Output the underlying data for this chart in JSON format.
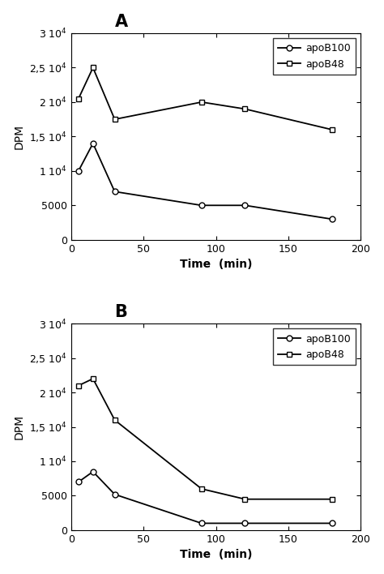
{
  "panel_A": {
    "title": "A",
    "apoB100": {
      "x": [
        5,
        15,
        30,
        90,
        120,
        180
      ],
      "y": [
        10000,
        14000,
        7000,
        5000,
        5000,
        3000
      ]
    },
    "apoB48": {
      "x": [
        5,
        15,
        30,
        90,
        120,
        180
      ],
      "y": [
        20500,
        25000,
        17500,
        20000,
        19000,
        16000
      ]
    }
  },
  "panel_B": {
    "title": "B",
    "apoB100": {
      "x": [
        5,
        15,
        30,
        90,
        120,
        180
      ],
      "y": [
        7000,
        8500,
        5200,
        1000,
        1000,
        1000
      ]
    },
    "apoB48": {
      "x": [
        5,
        15,
        30,
        90,
        120,
        180
      ],
      "y": [
        21000,
        22000,
        16000,
        6000,
        4500,
        4500
      ]
    }
  },
  "ylim": [
    0,
    30000
  ],
  "yticks": [
    0,
    5000,
    10000,
    15000,
    20000,
    25000,
    30000
  ],
  "xlim": [
    0,
    200
  ],
  "xticks": [
    0,
    50,
    100,
    150,
    200
  ],
  "xlabel": "Time  (min)",
  "ylabel": "DPM",
  "legend_labels": [
    "apoB100",
    "apoB48"
  ],
  "line_color": "#000000",
  "marker_circle": "o",
  "marker_square": "s",
  "marker_size": 5,
  "linewidth": 1.3,
  "title_fontsize": 15,
  "label_fontsize": 10,
  "tick_fontsize": 9,
  "legend_fontsize": 9
}
